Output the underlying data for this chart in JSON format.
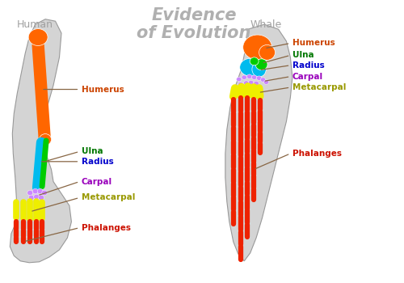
{
  "title": "Evidence\nof Evolution",
  "title_color": "#b0b0b0",
  "title_fontsize": 15,
  "bg_color": "#ffffff",
  "label_human": "Human",
  "label_whale": "Whale",
  "label_color_side": "#a0a0a0",
  "bone_colors": {
    "humerus": "#ff6600",
    "ulna": "#00cc00",
    "radius": "#00bbee",
    "carpal": "#cc88ff",
    "metacarpal": "#eeee00",
    "phalanges": "#ee2200"
  },
  "label_colors": {
    "humerus": "#cc4400",
    "ulna": "#007700",
    "radius": "#0000cc",
    "carpal": "#9900bb",
    "metacarpal": "#999900",
    "phalanges": "#cc1100"
  },
  "silhouette_color": "#d4d4d4",
  "outline_color": "#999999",
  "line_color": "#886644"
}
